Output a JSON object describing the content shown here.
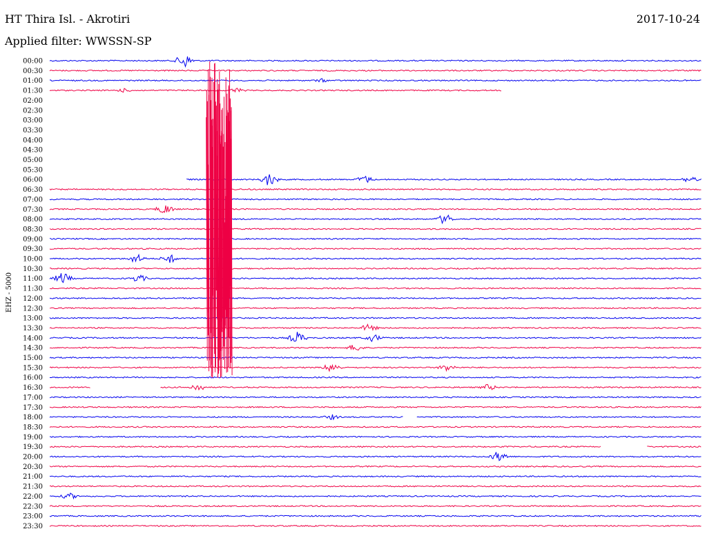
{
  "header": {
    "station": "HT Thira Isl. - Akrotiri",
    "date": "2017-10-24",
    "filter": "Applied filter: WWSSN-SP"
  },
  "chart_data": {
    "type": "line",
    "ylabel": "EHZ - 5000",
    "row_labels": [
      "00:00",
      "00:30",
      "01:00",
      "01:30",
      "02:00",
      "02:30",
      "03:00",
      "03:30",
      "04:00",
      "04:30",
      "05:00",
      "05:30",
      "06:00",
      "06:30",
      "07:00",
      "07:30",
      "08:00",
      "08:30",
      "09:00",
      "09:30",
      "10:00",
      "10:30",
      "11:00",
      "11:30",
      "12:00",
      "12:30",
      "13:00",
      "13:30",
      "14:00",
      "14:30",
      "15:00",
      "15:30",
      "16:00",
      "16:30",
      "17:00",
      "17:30",
      "18:00",
      "18:30",
      "19:00",
      "19:30",
      "20:00",
      "20:30",
      "21:00",
      "21:30",
      "22:00",
      "22:30",
      "23:00",
      "23:30"
    ],
    "colors": [
      "#0000ee",
      "#ee0044"
    ],
    "segment_minutes": 30,
    "trace_ranges_minutes": [
      [
        [
          0,
          30
        ]
      ],
      [
        [
          0,
          30
        ]
      ],
      [
        [
          0,
          30
        ]
      ],
      [
        [
          0,
          20.8
        ]
      ],
      [],
      [],
      [],
      [],
      [],
      [],
      [],
      [],
      [
        [
          6.3,
          30
        ]
      ],
      [
        [
          0,
          30
        ]
      ],
      [
        [
          0,
          30
        ]
      ],
      [
        [
          0,
          30
        ]
      ],
      [
        [
          0,
          30
        ]
      ],
      [
        [
          0,
          30
        ]
      ],
      [
        [
          0,
          30
        ]
      ],
      [
        [
          0,
          30
        ]
      ],
      [
        [
          0,
          30
        ]
      ],
      [
        [
          0,
          30
        ]
      ],
      [
        [
          0,
          30
        ]
      ],
      [
        [
          0,
          30
        ]
      ],
      [
        [
          0,
          30
        ]
      ],
      [
        [
          0,
          30
        ]
      ],
      [
        [
          0,
          30
        ]
      ],
      [
        [
          0,
          30
        ]
      ],
      [
        [
          0,
          30
        ]
      ],
      [
        [
          0,
          30
        ]
      ],
      [
        [
          0,
          30
        ]
      ],
      [
        [
          0,
          30
        ]
      ],
      [
        [
          0,
          30
        ]
      ],
      [
        [
          0,
          1.9
        ],
        [
          5.1,
          30
        ]
      ],
      [
        [
          0,
          30
        ]
      ],
      [
        [
          0,
          30
        ]
      ],
      [
        [
          0,
          16.3
        ],
        [
          16.9,
          30
        ]
      ],
      [
        [
          0,
          30
        ]
      ],
      [
        [
          0,
          30
        ]
      ],
      [
        [
          0,
          25.4
        ],
        [
          27.5,
          30
        ]
      ],
      [
        [
          0,
          30
        ]
      ],
      [
        [
          0,
          30
        ]
      ],
      [
        [
          0,
          30
        ]
      ],
      [
        [
          0,
          30
        ]
      ],
      [
        [
          0,
          30
        ]
      ],
      [
        [
          0,
          30
        ]
      ],
      [
        [
          0,
          30
        ]
      ],
      [
        [
          0,
          30
        ]
      ]
    ],
    "events": [
      {
        "row": 0,
        "minute": 6.2,
        "amplitude": 11
      },
      {
        "row": 2,
        "minute": 12.5,
        "amplitude": 3
      },
      {
        "row": 3,
        "minute": 3.4,
        "amplitude": 3
      },
      {
        "row": 3,
        "minute": 8.6,
        "amplitude": 4
      },
      {
        "row": 12,
        "minute": 10.1,
        "amplitude": 10
      },
      {
        "row": 12,
        "minute": 14.5,
        "amplitude": 6
      },
      {
        "row": 12,
        "minute": 29.5,
        "amplitude": 6
      },
      {
        "row": 15,
        "minute": 5.3,
        "amplitude": 8
      },
      {
        "row": 16,
        "minute": 18.2,
        "amplitude": 8
      },
      {
        "row": 20,
        "minute": 4,
        "amplitude": 7
      },
      {
        "row": 20,
        "minute": 5.5,
        "amplitude": 7
      },
      {
        "row": 22,
        "minute": 0.6,
        "amplitude": 9
      },
      {
        "row": 22,
        "minute": 4.1,
        "amplitude": 6
      },
      {
        "row": 27,
        "minute": 14.7,
        "amplitude": 6
      },
      {
        "row": 28,
        "minute": 11.4,
        "amplitude": 9
      },
      {
        "row": 28,
        "minute": 14.9,
        "amplitude": 6
      },
      {
        "row": 29,
        "minute": 14.1,
        "amplitude": 6
      },
      {
        "row": 31,
        "minute": 13,
        "amplitude": 8
      },
      {
        "row": 31,
        "minute": 18.3,
        "amplitude": 6
      },
      {
        "row": 33,
        "minute": 6.8,
        "amplitude": 6
      },
      {
        "row": 33,
        "minute": 20.2,
        "amplitude": 5
      },
      {
        "row": 36,
        "minute": 13,
        "amplitude": 4
      },
      {
        "row": 40,
        "minute": 20.7,
        "amplitude": 9
      },
      {
        "row": 44,
        "minute": 0.9,
        "amplitude": 5
      }
    ],
    "main_event": {
      "start_row": 0,
      "end_row": 33,
      "minute": 7.3
    }
  }
}
